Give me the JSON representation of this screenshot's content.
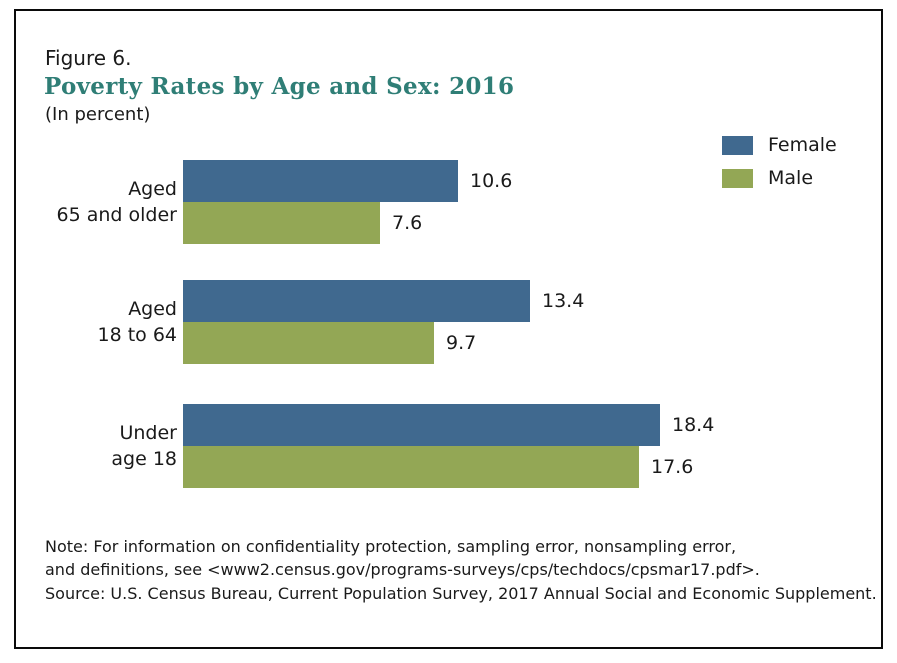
{
  "figure": {
    "label": "Figure 6.",
    "title": "Poverty Rates by Age and Sex: 2016",
    "subtitle": "(In percent)",
    "note": "Note: For information on confidentiality protection, sampling error, nonsampling error,\nand definitions, see <www2.census.gov/programs-surveys/cps/techdocs/cpsmar17.pdf>.",
    "source": "Source: U.S. Census Bureau, Current Population Survey, 2017 Annual Social and Economic Supplement."
  },
  "colors": {
    "female": "#40698F",
    "male": "#93A755",
    "title_accent": "#2F7E76",
    "text": "#1A1A1A",
    "border": "#0A0A0A"
  },
  "chart_data": {
    "type": "bar",
    "orientation": "horizontal",
    "title": "Poverty Rates by Age and Sex: 2016",
    "subtitle": "(In percent)",
    "categories": [
      "Aged\n65 and older",
      "Aged\n18 to 64",
      "Under\nage 18"
    ],
    "series": [
      {
        "name": "Female",
        "color": "#40698F",
        "values": [
          10.6,
          13.4,
          18.4
        ]
      },
      {
        "name": "Male",
        "color": "#93A755",
        "values": [
          7.6,
          9.7,
          17.6
        ]
      }
    ],
    "xlim": [
      0,
      20
    ],
    "xlabel": "",
    "ylabel": "",
    "grid": false,
    "legend_position": "top-right",
    "data_labels": true,
    "data_label_format": "one_decimal"
  }
}
